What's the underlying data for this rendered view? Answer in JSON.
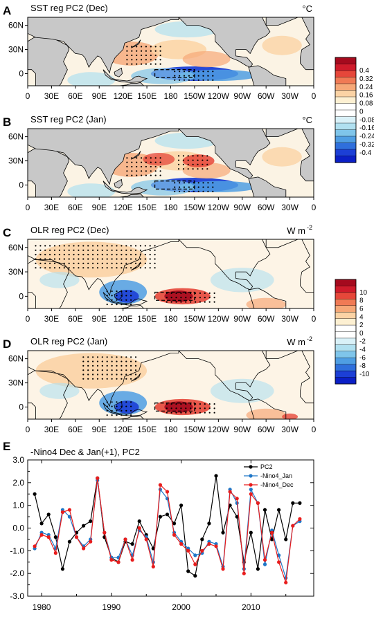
{
  "map_panels": [
    {
      "letter": "A",
      "title": "SST reg PC2 (Dec)",
      "unit": "°C",
      "unit_sup": ""
    },
    {
      "letter": "B",
      "title": "SST reg PC2 (Jan)",
      "unit": "°C",
      "unit_sup": ""
    },
    {
      "letter": "C",
      "title": "OLR reg PC2 (Dec)",
      "unit": "W m",
      "unit_sup": "-2"
    },
    {
      "letter": "D",
      "title": "OLR reg PC2 (Jan)",
      "unit": "W m",
      "unit_sup": "-2"
    }
  ],
  "map_lon_labels": [
    "0",
    "30E",
    "60E",
    "90E",
    "120E",
    "150E",
    "180",
    "150W",
    "120W",
    "90W",
    "60W",
    "30W",
    "0"
  ],
  "map_lat_labels": [
    "60N",
    "30N",
    "0"
  ],
  "colorbars": {
    "sst": {
      "labels": [
        "0.4",
        "0.32",
        "0.24",
        "0.16",
        "0.08",
        "0",
        "-0.08",
        "-0.16",
        "-0.24",
        "-0.32",
        "-0.4"
      ]
    },
    "olr": {
      "labels": [
        "10",
        "8",
        "6",
        "4",
        "2",
        "0",
        "-2",
        "-4",
        "-6",
        "-8",
        "-10"
      ]
    },
    "colors": [
      "#a50a1e",
      "#cf1b2b",
      "#e6473a",
      "#f07a55",
      "#f6a878",
      "#fbd3a5",
      "#fdf0d2",
      "#ffffff",
      "#ffffff",
      "#d9f1f8",
      "#b0e0f0",
      "#7fc5ea",
      "#4f9ee3",
      "#2f6fdc",
      "#1c3fd6",
      "#0b1fc6"
    ]
  },
  "panel_e": {
    "letter": "E",
    "title": "-Nino4 Dec & Jan(+1), PC2"
  },
  "chart_data": {
    "type": "line",
    "title": "-Nino4 Dec & Jan(+1), PC2",
    "xlabel": "",
    "ylabel": "",
    "xlim": [
      1978,
      2019
    ],
    "ylim": [
      -3.0,
      3.0
    ],
    "x_ticks": [
      "1980",
      "1990",
      "2000",
      "2010"
    ],
    "y_ticks": [
      "3.0",
      "2.0",
      "1.0",
      "0.0",
      "-1.0",
      "-2.0",
      "-3.0"
    ],
    "legend_position": "top-right",
    "x": [
      1979,
      1980,
      1981,
      1982,
      1983,
      1984,
      1985,
      1986,
      1987,
      1988,
      1989,
      1990,
      1991,
      1992,
      1993,
      1994,
      1995,
      1996,
      1997,
      1998,
      1999,
      2000,
      2001,
      2002,
      2003,
      2004,
      2005,
      2006,
      2007,
      2008,
      2009,
      2010,
      2011,
      2012,
      2013,
      2014,
      2015,
      2016,
      2017
    ],
    "series": [
      {
        "name": "PC2",
        "color": "#000000",
        "values": [
          1.5,
          0.2,
          0.6,
          -0.4,
          -1.8,
          -0.6,
          -0.2,
          0.1,
          0.3,
          2.2,
          -0.4,
          -1.3,
          -1.5,
          -0.6,
          -0.7,
          0.3,
          -0.3,
          -0.9,
          0.5,
          0.6,
          0.2,
          1.0,
          -1.9,
          -2.1,
          -0.5,
          0.2,
          2.3,
          -0.2,
          1.0,
          0.5,
          -1.5,
          -0.2,
          -1.8,
          0.8,
          -0.5,
          0.8,
          -0.5,
          1.1,
          1.1
        ]
      },
      {
        "name": "-Nino4_Jan",
        "color": "#1f77c8",
        "values": [
          -0.9,
          -0.2,
          -0.3,
          -0.9,
          0.8,
          0.5,
          -0.4,
          -0.8,
          -0.5,
          2.1,
          -0.2,
          -1.3,
          -1.3,
          -0.5,
          -1.2,
          -0.1,
          -0.4,
          -1.5,
          1.7,
          1.3,
          -0.2,
          -0.6,
          -0.9,
          -1.2,
          -1.1,
          -0.6,
          -0.7,
          -1.7,
          1.7,
          1.1,
          -1.8,
          1.7,
          1.1,
          -1.6,
          -0.1,
          -1.2,
          -2.2,
          0.1,
          0.3
        ]
      },
      {
        "name": "-Nino4_Dec",
        "color": "#e81c1c",
        "values": [
          -0.8,
          -0.3,
          -0.4,
          -1.1,
          0.7,
          0.8,
          -0.4,
          -0.9,
          -0.6,
          2.2,
          -0.2,
          -1.4,
          -1.5,
          -0.5,
          -1.4,
          0.0,
          -0.5,
          -1.7,
          1.9,
          1.6,
          -0.3,
          -0.7,
          -1.0,
          -1.6,
          -1.0,
          -0.7,
          -0.8,
          -1.8,
          1.6,
          1.3,
          -2.0,
          1.5,
          1.1,
          -1.4,
          -0.2,
          -1.5,
          -2.4,
          0.1,
          0.4
        ]
      }
    ]
  }
}
